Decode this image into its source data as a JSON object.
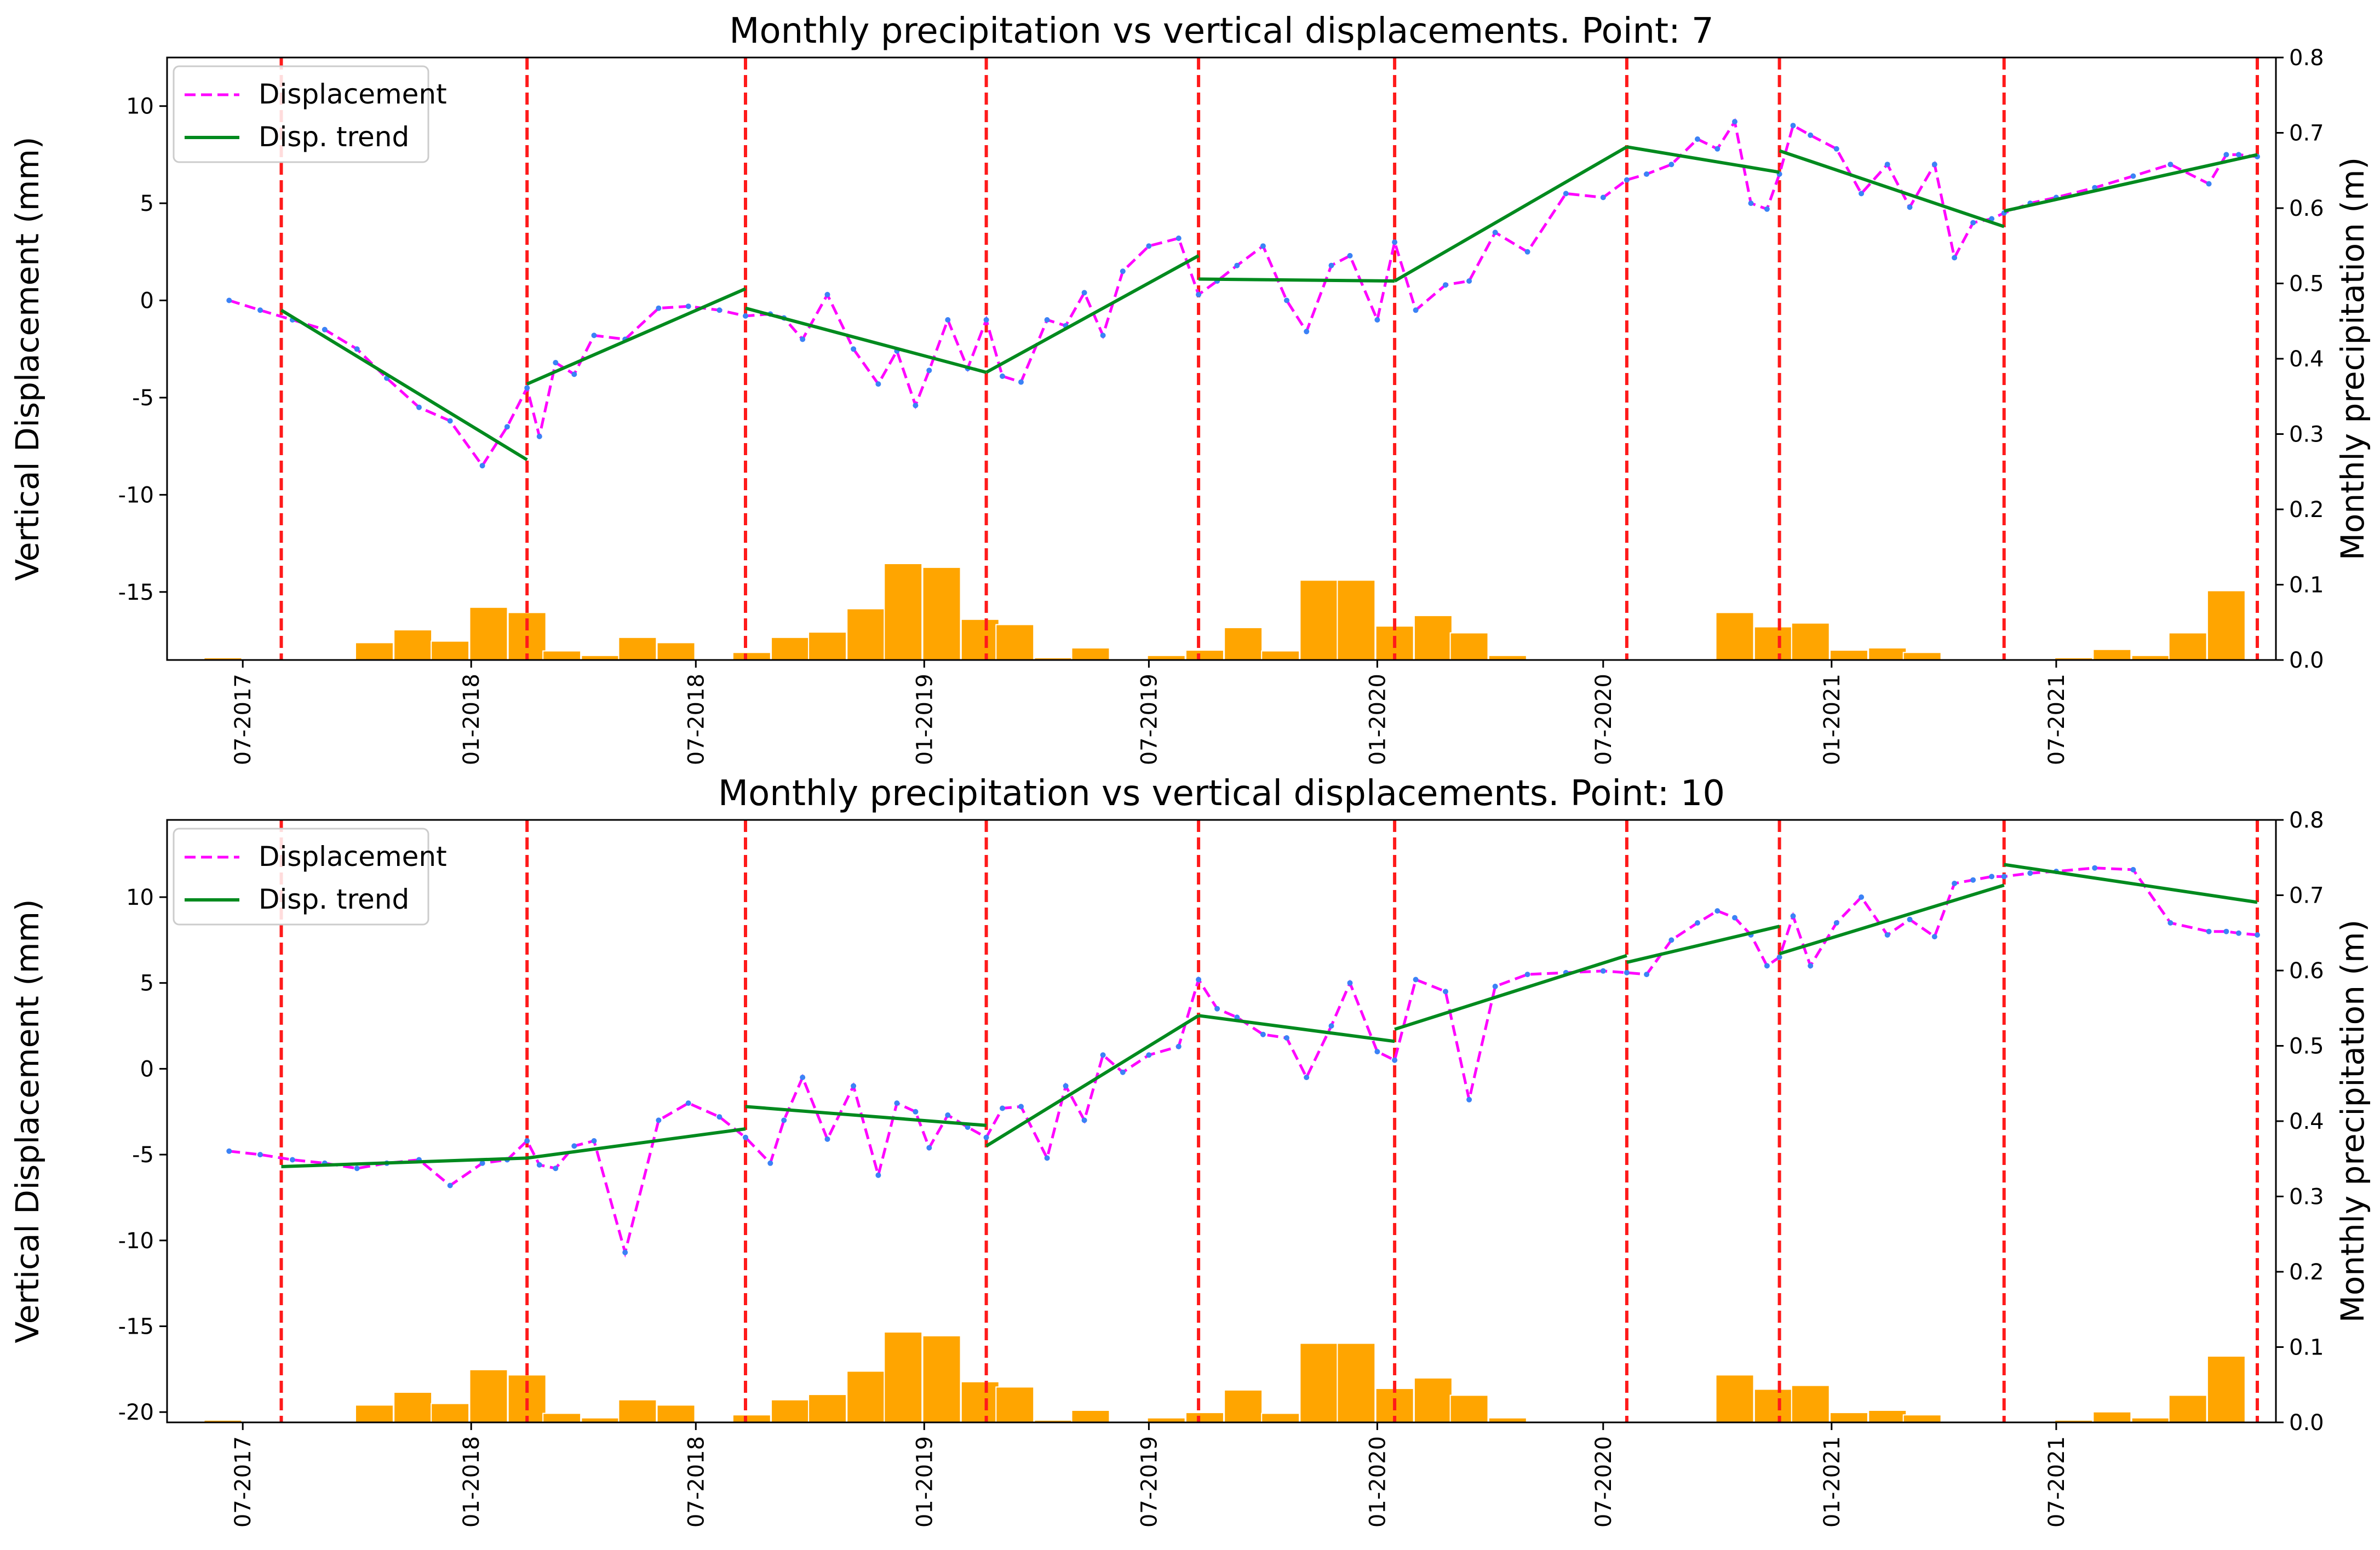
{
  "chart_data": [
    {
      "type": "line+bar",
      "title": "Monthly precipitation vs vertical displacements. Point: 7",
      "ylabel": "Vertical Displacement (mm)",
      "y2label": "Monthly precipitation (m)",
      "xlabel": "",
      "ylim": [
        -18.5,
        12.5
      ],
      "y2lim": [
        0.0,
        0.8
      ],
      "yticks": [
        10,
        5,
        0,
        -5,
        -10,
        -15
      ],
      "y2ticks": [
        0.0,
        0.1,
        0.2,
        0.3,
        0.4,
        0.5,
        0.6,
        0.7,
        0.8
      ],
      "xlim": [
        "2017-05-01",
        "2021-12-25"
      ],
      "xticks": [
        "07-2017",
        "01-2018",
        "07-2018",
        "01-2019",
        "07-2019",
        "01-2020",
        "07-2020",
        "01-2021",
        "07-2021"
      ],
      "legend": [
        "Displacement",
        "Disp. trend"
      ],
      "legend_position": "upper-left",
      "breaks": [
        "2017-08-01",
        "2018-02-15",
        "2018-08-10",
        "2019-02-20",
        "2019-08-10",
        "2020-01-15",
        "2020-07-20",
        "2020-11-20",
        "2021-05-20",
        "2021-12-10"
      ],
      "displacement": {
        "x": [
          "2017-06-20",
          "2017-07-15",
          "2017-08-10",
          "2017-09-05",
          "2017-10-01",
          "2017-10-25",
          "2017-11-20",
          "2017-12-15",
          "2018-01-10",
          "2018-01-30",
          "2018-02-15",
          "2018-02-25",
          "2018-03-10",
          "2018-03-25",
          "2018-04-10",
          "2018-05-05",
          "2018-06-01",
          "2018-06-25",
          "2018-07-20",
          "2018-08-10",
          "2018-08-30",
          "2018-09-10",
          "2018-09-25",
          "2018-10-15",
          "2018-11-05",
          "2018-11-25",
          "2018-12-10",
          "2018-12-25",
          "2019-01-05",
          "2019-01-20",
          "2019-02-05",
          "2019-02-20",
          "2019-03-05",
          "2019-03-20",
          "2019-04-10",
          "2019-04-25",
          "2019-05-10",
          "2019-05-25",
          "2019-06-10",
          "2019-07-01",
          "2019-07-25",
          "2019-08-10",
          "2019-08-25",
          "2019-09-10",
          "2019-10-01",
          "2019-10-20",
          "2019-11-05",
          "2019-11-25",
          "2019-12-10",
          "2020-01-01",
          "2020-01-15",
          "2020-02-01",
          "2020-02-25",
          "2020-03-15",
          "2020-04-05",
          "2020-05-01",
          "2020-06-01",
          "2020-07-01",
          "2020-07-20",
          "2020-08-05",
          "2020-08-25",
          "2020-09-15",
          "2020-10-01",
          "2020-10-15",
          "2020-10-28",
          "2020-11-10",
          "2020-11-20",
          "2020-12-01",
          "2020-12-15",
          "2021-01-05",
          "2021-01-25",
          "2021-02-15",
          "2021-03-05",
          "2021-03-25",
          "2021-04-10",
          "2021-04-25",
          "2021-05-10",
          "2021-05-20",
          "2021-06-10",
          "2021-07-01",
          "2021-08-01",
          "2021-09-01",
          "2021-10-01",
          "2021-11-01",
          "2021-11-15",
          "2021-11-25",
          "2021-12-10"
        ],
        "y": [
          0.0,
          -0.5,
          -1.0,
          -1.5,
          -2.5,
          -4.0,
          -5.5,
          -6.2,
          -8.5,
          -6.5,
          -4.5,
          -7.0,
          -3.2,
          -3.8,
          -1.8,
          -2.0,
          -0.4,
          -0.3,
          -0.5,
          -0.8,
          -0.7,
          -0.9,
          -2.0,
          0.3,
          -2.5,
          -4.3,
          -2.6,
          -5.4,
          -3.6,
          -1.0,
          -3.5,
          -1.0,
          -3.9,
          -4.2,
          -1.0,
          -1.3,
          0.4,
          -1.8,
          1.5,
          2.8,
          3.2,
          0.3,
          1.0,
          1.8,
          2.8,
          0.0,
          -1.6,
          1.8,
          2.3,
          -1.0,
          3.0,
          -0.5,
          0.8,
          1.0,
          3.5,
          2.5,
          5.5,
          5.3,
          6.2,
          6.5,
          7.0,
          8.3,
          7.8,
          9.2,
          5.0,
          4.7,
          6.5,
          9.0,
          8.5,
          7.8,
          5.5,
          7.0,
          4.8,
          7.0,
          2.2,
          4.0,
          4.2,
          4.5,
          5.0,
          5.3,
          5.8,
          6.4,
          7.0,
          6.0,
          7.5,
          7.5,
          7.4
        ]
      },
      "trend": [
        {
          "x": [
            "2017-08-01",
            "2018-02-15"
          ],
          "y": [
            -0.5,
            -8.2
          ]
        },
        {
          "x": [
            "2018-02-15",
            "2018-08-10"
          ],
          "y": [
            -4.3,
            0.6
          ]
        },
        {
          "x": [
            "2018-08-10",
            "2019-02-20"
          ],
          "y": [
            -0.4,
            -3.7
          ]
        },
        {
          "x": [
            "2019-02-20",
            "2019-08-10"
          ],
          "y": [
            -3.7,
            2.3
          ]
        },
        {
          "x": [
            "2019-08-10",
            "2020-01-15"
          ],
          "y": [
            1.1,
            1.0
          ]
        },
        {
          "x": [
            "2020-01-15",
            "2020-07-20"
          ],
          "y": [
            1.0,
            7.9
          ]
        },
        {
          "x": [
            "2020-07-20",
            "2020-11-20"
          ],
          "y": [
            7.9,
            6.6
          ]
        },
        {
          "x": [
            "2020-11-20",
            "2021-05-20"
          ],
          "y": [
            7.7,
            3.8
          ]
        },
        {
          "x": [
            "2021-05-20",
            "2021-12-10"
          ],
          "y": [
            4.6,
            7.5
          ]
        }
      ],
      "precipitation": {
        "x": [
          "2017-06-15",
          "2017-07-15",
          "2017-08-15",
          "2017-09-15",
          "2017-10-15",
          "2017-11-15",
          "2017-12-15",
          "2018-01-15",
          "2018-02-15",
          "2018-03-15",
          "2018-04-15",
          "2018-05-15",
          "2018-06-15",
          "2018-07-15",
          "2018-08-15",
          "2018-09-15",
          "2018-10-15",
          "2018-11-15",
          "2018-12-15",
          "2019-01-15",
          "2019-02-15",
          "2019-03-15",
          "2019-04-15",
          "2019-05-15",
          "2019-06-15",
          "2019-07-15",
          "2019-08-15",
          "2019-09-15",
          "2019-10-15",
          "2019-11-15",
          "2019-12-15",
          "2020-01-15",
          "2020-02-15",
          "2020-03-15",
          "2020-04-15",
          "2020-05-15",
          "2020-06-15",
          "2020-07-15",
          "2020-08-15",
          "2020-09-15",
          "2020-10-15",
          "2020-11-15",
          "2020-12-15",
          "2021-01-15",
          "2021-02-15",
          "2021-03-15",
          "2021-04-15",
          "2021-05-15",
          "2021-06-15",
          "2021-07-15",
          "2021-08-15",
          "2021-09-15",
          "2021-10-15",
          "2021-11-15",
          "2021-12-15"
        ],
        "values": [
          0.003,
          0.0,
          0.0,
          0.0,
          0.023,
          0.04,
          0.025,
          0.07,
          0.063,
          0.012,
          0.006,
          0.03,
          0.023,
          0.0,
          0.01,
          0.03,
          0.037,
          0.068,
          0.128,
          0.123,
          0.054,
          0.047,
          0.003,
          0.016,
          0.0,
          0.006,
          0.013,
          0.043,
          0.012,
          0.106,
          0.106,
          0.045,
          0.059,
          0.036,
          0.006,
          0.0,
          0.0,
          0.0,
          0.0,
          0.0,
          0.063,
          0.044,
          0.049,
          0.013,
          0.016,
          0.01,
          0.0,
          0.0,
          0.0,
          0.003,
          0.014,
          0.006,
          0.036,
          0.092,
          0.0
        ]
      }
    },
    {
      "type": "line+bar",
      "title": "Monthly precipitation vs vertical displacements. Point: 10",
      "ylabel": "Vertical Displacement (mm)",
      "y2label": "Monthly precipitation (m)",
      "xlabel": "",
      "ylim": [
        -20.6,
        14.5
      ],
      "y2lim": [
        0.0,
        0.8
      ],
      "yticks": [
        10,
        5,
        0,
        -5,
        -10,
        -15,
        -20
      ],
      "y2ticks": [
        0.0,
        0.1,
        0.2,
        0.3,
        0.4,
        0.5,
        0.6,
        0.7,
        0.8
      ],
      "xlim": [
        "2017-05-01",
        "2021-12-25"
      ],
      "xticks": [
        "07-2017",
        "01-2018",
        "07-2018",
        "01-2019",
        "07-2019",
        "01-2020",
        "07-2020",
        "01-2021",
        "07-2021"
      ],
      "legend": [
        "Displacement",
        "Disp. trend"
      ],
      "legend_position": "upper-left",
      "breaks": [
        "2017-08-01",
        "2018-02-15",
        "2018-08-10",
        "2019-02-20",
        "2019-08-10",
        "2020-01-15",
        "2020-07-20",
        "2020-11-20",
        "2021-05-20",
        "2021-12-10"
      ],
      "displacement": {
        "x": [
          "2017-06-20",
          "2017-07-15",
          "2017-08-10",
          "2017-09-05",
          "2017-10-01",
          "2017-10-25",
          "2017-11-20",
          "2017-12-15",
          "2018-01-10",
          "2018-01-30",
          "2018-02-15",
          "2018-02-25",
          "2018-03-10",
          "2018-03-25",
          "2018-04-10",
          "2018-05-05",
          "2018-06-01",
          "2018-06-25",
          "2018-07-20",
          "2018-08-10",
          "2018-08-30",
          "2018-09-10",
          "2018-09-25",
          "2018-10-15",
          "2018-11-05",
          "2018-11-25",
          "2018-12-10",
          "2018-12-25",
          "2019-01-05",
          "2019-01-20",
          "2019-02-05",
          "2019-02-20",
          "2019-03-05",
          "2019-03-20",
          "2019-04-10",
          "2019-04-25",
          "2019-05-10",
          "2019-05-25",
          "2019-06-10",
          "2019-07-01",
          "2019-07-25",
          "2019-08-10",
          "2019-08-25",
          "2019-09-10",
          "2019-10-01",
          "2019-10-20",
          "2019-11-05",
          "2019-11-25",
          "2019-12-10",
          "2020-01-01",
          "2020-01-15",
          "2020-02-01",
          "2020-02-25",
          "2020-03-15",
          "2020-04-05",
          "2020-05-01",
          "2020-06-01",
          "2020-07-01",
          "2020-07-20",
          "2020-08-05",
          "2020-08-25",
          "2020-09-15",
          "2020-10-01",
          "2020-10-15",
          "2020-10-28",
          "2020-11-10",
          "2020-11-20",
          "2020-12-01",
          "2020-12-15",
          "2021-01-05",
          "2021-01-25",
          "2021-02-15",
          "2021-03-05",
          "2021-03-25",
          "2021-04-10",
          "2021-04-25",
          "2021-05-10",
          "2021-05-20",
          "2021-06-10",
          "2021-07-01",
          "2021-08-01",
          "2021-09-01",
          "2021-10-01",
          "2021-11-01",
          "2021-11-15",
          "2021-11-25",
          "2021-12-10"
        ],
        "y": [
          -4.8,
          -5.0,
          -5.3,
          -5.5,
          -5.8,
          -5.5,
          -5.3,
          -6.8,
          -5.5,
          -5.3,
          -4.2,
          -5.6,
          -5.8,
          -4.5,
          -4.2,
          -10.7,
          -3.0,
          -2.0,
          -2.8,
          -4.0,
          -5.5,
          -3.0,
          -0.5,
          -4.1,
          -1.0,
          -6.2,
          -2.0,
          -2.5,
          -4.6,
          -2.7,
          -3.4,
          -4.0,
          -2.3,
          -2.2,
          -5.2,
          -1.0,
          -3.0,
          0.8,
          -0.2,
          0.8,
          1.3,
          5.2,
          3.5,
          3.0,
          2.0,
          1.8,
          -0.5,
          2.5,
          5.0,
          1.0,
          0.5,
          5.2,
          4.5,
          -1.8,
          4.8,
          5.5,
          5.6,
          5.7,
          5.6,
          5.5,
          7.5,
          8.5,
          9.2,
          8.8,
          7.8,
          6.0,
          6.5,
          8.9,
          6.0,
          8.5,
          10.0,
          7.8,
          8.7,
          7.7,
          10.8,
          11.0,
          11.2,
          11.2,
          11.4,
          11.5,
          11.7,
          11.6,
          8.5,
          8.0,
          8.0,
          7.9,
          7.8
        ]
      },
      "trend": [
        {
          "x": [
            "2017-08-01",
            "2018-02-15"
          ],
          "y": [
            -5.7,
            -5.2
          ]
        },
        {
          "x": [
            "2018-02-15",
            "2018-08-10"
          ],
          "y": [
            -5.2,
            -3.5
          ]
        },
        {
          "x": [
            "2018-08-10",
            "2019-02-20"
          ],
          "y": [
            -2.2,
            -3.3
          ]
        },
        {
          "x": [
            "2019-02-20",
            "2019-08-10"
          ],
          "y": [
            -4.5,
            3.1
          ]
        },
        {
          "x": [
            "2019-08-10",
            "2020-01-15"
          ],
          "y": [
            3.1,
            1.6
          ]
        },
        {
          "x": [
            "2020-01-15",
            "2020-07-20"
          ],
          "y": [
            2.3,
            6.6
          ]
        },
        {
          "x": [
            "2020-07-20",
            "2020-11-20"
          ],
          "y": [
            6.2,
            8.3
          ]
        },
        {
          "x": [
            "2020-11-20",
            "2021-05-20"
          ],
          "y": [
            6.7,
            10.7
          ]
        },
        {
          "x": [
            "2021-05-20",
            "2021-12-10"
          ],
          "y": [
            11.9,
            9.7
          ]
        }
      ],
      "precipitation": {
        "x": [
          "2017-06-15",
          "2017-07-15",
          "2017-08-15",
          "2017-09-15",
          "2017-10-15",
          "2017-11-15",
          "2017-12-15",
          "2018-01-15",
          "2018-02-15",
          "2018-03-15",
          "2018-04-15",
          "2018-05-15",
          "2018-06-15",
          "2018-07-15",
          "2018-08-15",
          "2018-09-15",
          "2018-10-15",
          "2018-11-15",
          "2018-12-15",
          "2019-01-15",
          "2019-02-15",
          "2019-03-15",
          "2019-04-15",
          "2019-05-15",
          "2019-06-15",
          "2019-07-15",
          "2019-08-15",
          "2019-09-15",
          "2019-10-15",
          "2019-11-15",
          "2019-12-15",
          "2020-01-15",
          "2020-02-15",
          "2020-03-15",
          "2020-04-15",
          "2020-05-15",
          "2020-06-15",
          "2020-07-15",
          "2020-08-15",
          "2020-09-15",
          "2020-10-15",
          "2020-11-15",
          "2020-12-15",
          "2021-01-15",
          "2021-02-15",
          "2021-03-15",
          "2021-04-15",
          "2021-05-15",
          "2021-06-15",
          "2021-07-15",
          "2021-08-15",
          "2021-09-15",
          "2021-10-15",
          "2021-11-15",
          "2021-12-15"
        ],
        "values": [
          0.003,
          0.0,
          0.0,
          0.0,
          0.023,
          0.04,
          0.025,
          0.07,
          0.063,
          0.012,
          0.006,
          0.03,
          0.023,
          0.0,
          0.01,
          0.03,
          0.037,
          0.068,
          0.12,
          0.115,
          0.054,
          0.047,
          0.003,
          0.016,
          0.0,
          0.006,
          0.013,
          0.043,
          0.012,
          0.105,
          0.105,
          0.045,
          0.059,
          0.036,
          0.006,
          0.0,
          0.0,
          0.0,
          0.0,
          0.0,
          0.063,
          0.044,
          0.049,
          0.013,
          0.016,
          0.01,
          0.0,
          0.0,
          0.0,
          0.003,
          0.014,
          0.006,
          0.036,
          0.088,
          0.0
        ]
      }
    }
  ],
  "colors": {
    "displacement": "#ff00ff",
    "markers": "#3b82f6",
    "trend": "#008a1e",
    "breaks": "#ff1a1a",
    "precipitation": "#ffa500"
  }
}
